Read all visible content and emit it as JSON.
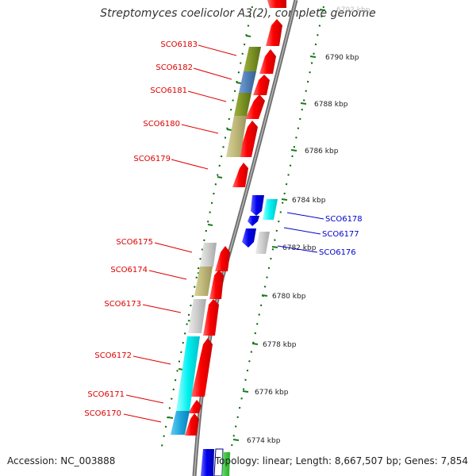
{
  "title": "Streptomyces coelicolor A3(2), complete genome",
  "accession": "Accession: NC_003888",
  "genome_info": "Topology: linear; Length: 8,667,507 bp; Genes: 7,854",
  "scale_labels": [
    "6792 kbp",
    "6790 kbp",
    "6788 kbp",
    "6786 kbp",
    "6784 kbp",
    "6782 kbp",
    "6780 kbp",
    "6778 kbp",
    "6776 kbp",
    "6774 kbp"
  ],
  "forward_genes": [
    "SCO6183",
    "SCO6182",
    "SCO6181",
    "SCO6180",
    "SCO6179",
    "SCO6175",
    "SCO6174",
    "SCO6173",
    "SCO6172",
    "SCO6171",
    "SCO6170"
  ],
  "reverse_genes": [
    "SCO6178",
    "SCO6177",
    "SCO6176"
  ],
  "colors": {
    "forward_label": "#dd0000",
    "reverse_label": "#0000cc",
    "forward_gene": "#ff0000",
    "reverse_gene": "#0000ee",
    "backbone": "#888888",
    "scale_dots": "#006600"
  }
}
